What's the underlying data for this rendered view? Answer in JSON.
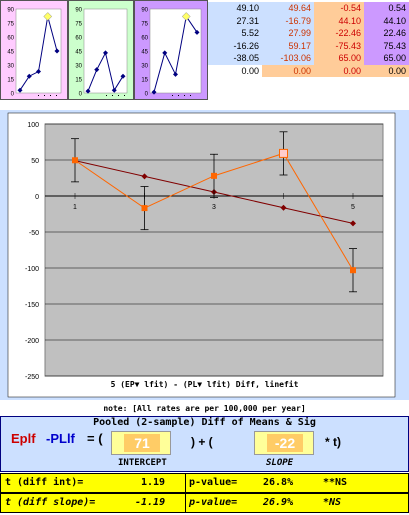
{
  "mini_charts": [
    {
      "name": "mini-1",
      "values": [
        3,
        18,
        23,
        82,
        45
      ],
      "ymax": 90
    },
    {
      "name": "mini-2",
      "values": [
        2,
        25,
        43,
        3,
        18
      ],
      "ymax": 90
    },
    {
      "name": "mini-3",
      "values": [
        1,
        43,
        20,
        82,
        65
      ],
      "ymax": 90
    }
  ],
  "mini_ticks": [
    "90",
    "75",
    "60",
    "45",
    "30",
    "15",
    "0"
  ],
  "grid": {
    "col1": [
      "49.10",
      "27.31",
      "5.52",
      "-16.26",
      "-38.05",
      "0.00"
    ],
    "col2": [
      "49.64",
      "-16.79",
      "27.99",
      "59.17",
      "-103.06",
      "0.00"
    ],
    "col3": [
      "-0.54",
      "44.10",
      "-22.46",
      "-75.43",
      "65.00",
      "0.00"
    ],
    "col4": [
      "0.54",
      "44.10",
      "22.46",
      "75.43",
      "65.00",
      "0.00"
    ]
  },
  "chart_data": {
    "type": "line",
    "x": [
      1,
      2,
      3,
      4,
      5
    ],
    "series": [
      {
        "values": [
          49.1,
          27.31,
          5.52,
          -16.26,
          -38.05
        ],
        "color": "#800000"
      },
      {
        "values": [
          49.64,
          -16.79,
          27.99,
          59.17,
          -103.06
        ],
        "color": "#ff6600",
        "error": [
          30,
          30,
          30,
          30,
          30
        ]
      }
    ],
    "ylim": [
      -250,
      100
    ],
    "yticks": [
      "100",
      "50",
      "0",
      "-50",
      "-100",
      "-150",
      "-200",
      "-250"
    ],
    "xticks": [
      "1",
      "3",
      "5"
    ],
    "title": "5 (EP▼ lfit) - (PL▼ lfit) Diff, linefit"
  },
  "note": "note: [All rates are per 100,000 per year]",
  "regression": {
    "title": "Pooled (2-sample) Diff of Means & Sig",
    "lhs_part1": "Eplf",
    "lhs_part2": "-PLlf",
    "equals": "= (",
    "intercept": "71",
    "op1": ") + (",
    "slope": "-22",
    "op2": "* t)",
    "intercept_label": "INTERCEPT",
    "slope_label": "SLOPE"
  },
  "stats": {
    "row1": {
      "label": "t (diff int)=",
      "t": "1.19",
      "p_label": "p-value=",
      "p": "26.8%",
      "sig": "**NS"
    },
    "row2": {
      "label": "t (diff slope)=",
      "t": "-1.19",
      "p_label": "p-value=",
      "p": "26.9%",
      "sig": "*NS"
    }
  }
}
